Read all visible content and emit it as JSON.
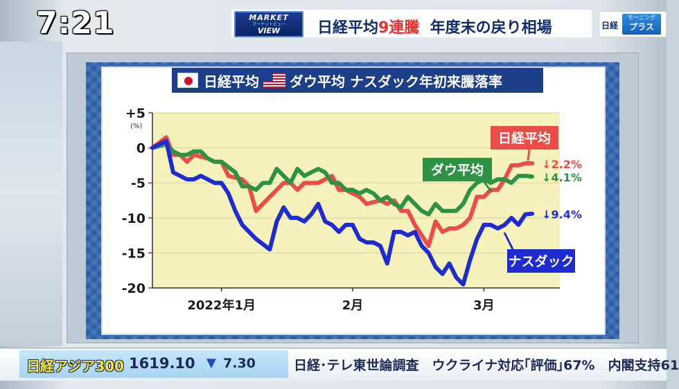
{
  "clock": "7:21",
  "header": {
    "logo_line1": "MARKET",
    "logo_line2": "マーケットビュー",
    "logo_line3": "VIEW",
    "headline_prefix": "日経平均",
    "headline_highlight": "9連騰",
    "headline_suffix": "年度末の戻り相場",
    "brand_nikkei": "日経",
    "brand_morning": "モーニング",
    "brand_plus": "プラス"
  },
  "panel": {
    "title_part1": "日経平均",
    "title_part2": "ダウ平均 ナスダック年初来騰落率"
  },
  "colors": {
    "nikkei": "#ea4d47",
    "dow": "#2e9245",
    "nasdaq": "#1d2bd1",
    "plot_bg": "#f6f2bc"
  },
  "chart_data": {
    "type": "line",
    "ylim": [
      -20,
      5
    ],
    "y_ticks": [
      5,
      0,
      -5,
      -10,
      -15,
      -20
    ],
    "y_tick_labels": [
      "+5",
      "0",
      "-5",
      "-10",
      "-15",
      "-20"
    ],
    "y_unit": "(%)",
    "x_tick_labels": [
      "2022年1月",
      "2月",
      "3月"
    ],
    "x_tick_positions": [
      10,
      29,
      48
    ],
    "xlim": [
      0,
      59
    ],
    "series": [
      {
        "name": "日経平均",
        "end_label": "↓2.2%",
        "x": [
          0,
          2,
          3,
          4,
          5,
          6,
          8,
          9,
          10,
          11,
          13,
          14,
          15,
          17,
          18,
          19,
          20,
          21,
          22,
          24,
          26,
          27,
          28,
          29,
          30,
          31,
          33,
          34,
          35,
          36,
          37,
          38,
          39,
          40,
          41,
          42,
          43,
          44,
          45,
          46,
          47,
          48,
          49,
          50,
          51,
          52,
          53,
          54,
          55
        ],
        "values": [
          0,
          1.5,
          -1,
          -1,
          -2,
          -1,
          -1.5,
          -2,
          -2,
          -4,
          -4.5,
          -5.5,
          -9,
          -7,
          -6,
          -5,
          -5,
          -6,
          -5,
          -5,
          -4,
          -6,
          -6,
          -6.5,
          -7,
          -8,
          -7.5,
          -8,
          -7.5,
          -9,
          -9,
          -11,
          -12.5,
          -14,
          -10.5,
          -12,
          -11.5,
          -11.5,
          -11,
          -10,
          -7,
          -7,
          -6,
          -6,
          -4.5,
          -2.5,
          -2.5,
          -2.2,
          -2.2
        ]
      },
      {
        "name": "ダウ平均",
        "end_label": "↓4.1%",
        "x": [
          0,
          2,
          3,
          4,
          5,
          6,
          7,
          8,
          9,
          10,
          12,
          13,
          14,
          15,
          16,
          17,
          18,
          19,
          20,
          21,
          22,
          23,
          24,
          25,
          26,
          27,
          28,
          29,
          30,
          31,
          32,
          33,
          34,
          35,
          36,
          37,
          38,
          39,
          40,
          41,
          42,
          43,
          44,
          45,
          46,
          47,
          48,
          49,
          50,
          51,
          52,
          53,
          54,
          55
        ],
        "values": [
          0,
          0.5,
          -0.5,
          -1,
          -1,
          -0.5,
          -0.5,
          -1.5,
          -2,
          -2,
          -3.5,
          -5.5,
          -5.5,
          -6,
          -5,
          -5,
          -3,
          -4,
          -5,
          -3,
          -4,
          -3.5,
          -3,
          -3.5,
          -5,
          -5,
          -6,
          -6,
          -6.5,
          -6,
          -6.5,
          -7.5,
          -7,
          -8,
          -8.5,
          -7,
          -8,
          -9,
          -9.5,
          -8,
          -9,
          -9,
          -9,
          -8,
          -6,
          -5,
          -4.5,
          -5,
          -4.5,
          -4.5,
          -5,
          -4,
          -4,
          -4.1
        ]
      },
      {
        "name": "ナスダック",
        "end_label": "↓9.4%",
        "x": [
          0,
          2,
          3,
          4,
          5,
          6,
          7,
          8,
          9,
          10,
          11,
          12,
          13,
          14,
          15,
          17,
          18,
          19,
          20,
          21,
          22,
          23,
          24,
          25,
          26,
          27,
          28,
          29,
          30,
          31,
          32,
          33,
          34,
          35,
          36,
          37,
          38,
          39,
          40,
          41,
          42,
          43,
          44,
          45,
          46,
          47,
          48,
          49,
          50,
          51,
          52,
          53,
          54,
          55
        ],
        "values": [
          0,
          1,
          -3.5,
          -4,
          -4.5,
          -4.5,
          -4,
          -4.5,
          -5,
          -5,
          -6.5,
          -9,
          -11,
          -12,
          -13,
          -14.5,
          -10.5,
          -8.5,
          -10,
          -10,
          -10.5,
          -9.5,
          -8,
          -10.5,
          -11,
          -12,
          -11,
          -11,
          -13,
          -13.5,
          -13.5,
          -14,
          -16.5,
          -12,
          -12,
          -12.5,
          -12,
          -14,
          -15,
          -17,
          -18,
          -16.5,
          -18.5,
          -19.5,
          -16,
          -13,
          -11,
          -11,
          -11.5,
          -11,
          -10,
          -11,
          -9.5,
          -9.4
        ]
      }
    ]
  },
  "ticker": {
    "name": "日経アジア300",
    "value": "1619.10",
    "arrow": "▼",
    "change": "7.30",
    "news": "日経･テレ東世論調査　ウクライナ対応｢評価｣67%　内閣支持61"
  }
}
